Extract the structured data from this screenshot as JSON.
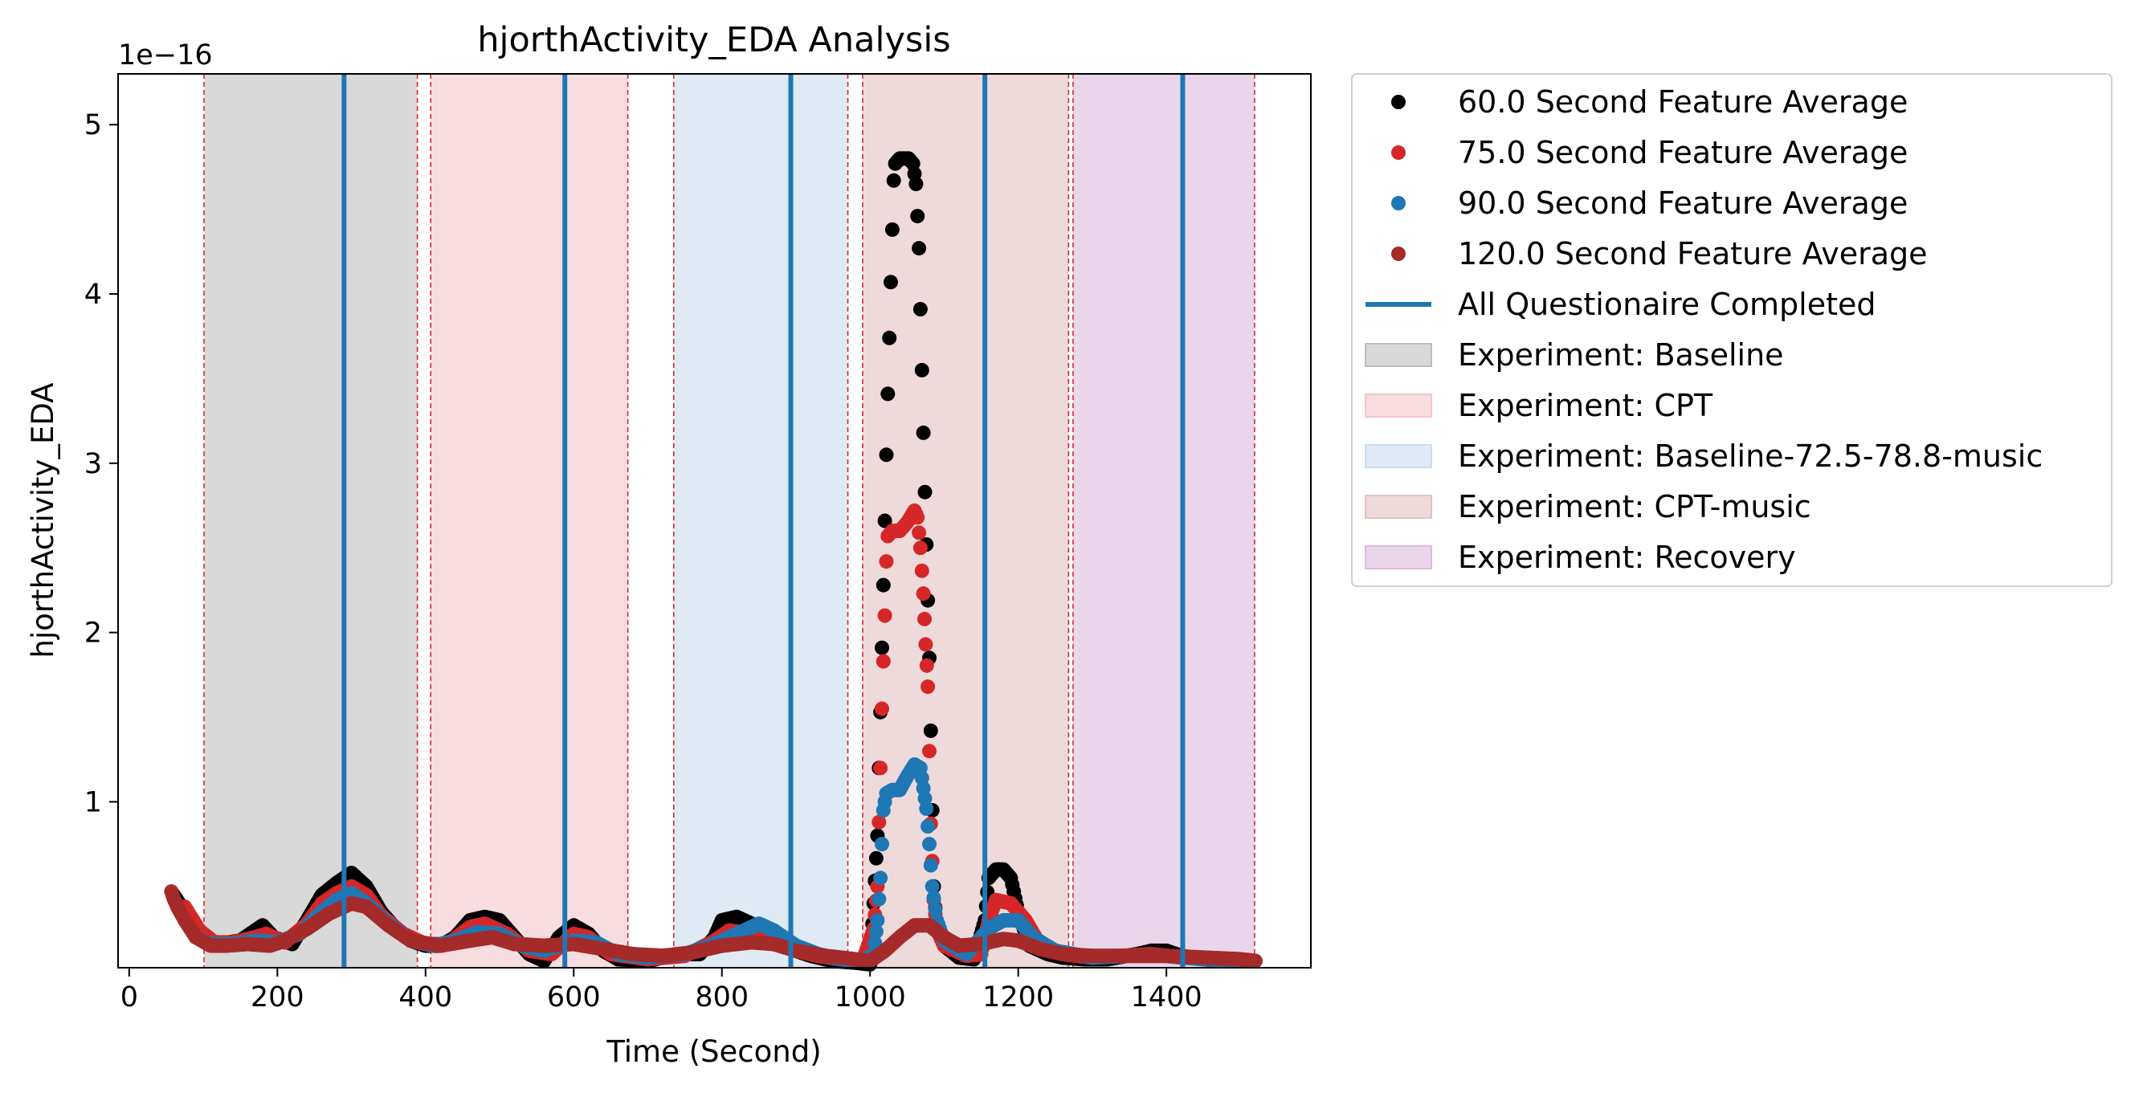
{
  "chart_data": {
    "type": "scatter",
    "title": "hjorthActivity_EDA Analysis",
    "xlabel": "Time (Second)",
    "ylabel": "hjorthActivity_EDA",
    "y_scale_label": "1e−16",
    "xlim": [
      -15,
      1595
    ],
    "ylim": [
      0.02,
      5.3
    ],
    "x_ticks": [
      0,
      200,
      400,
      600,
      800,
      1000,
      1200,
      1400
    ],
    "x_tick_labels": [
      "0",
      "200",
      "400",
      "600",
      "800",
      "1000",
      "1200",
      "1400"
    ],
    "y_ticks": [
      1,
      2,
      3,
      4,
      5
    ],
    "y_tick_labels": [
      "1",
      "2",
      "3",
      "4",
      "5"
    ],
    "grid": false,
    "legend_position": "outside-right",
    "series": [
      {
        "name": "60.0 Second Feature Average",
        "color": "#000000",
        "points": [
          [
            60,
            0.45
          ],
          [
            80,
            0.32
          ],
          [
            100,
            0.18
          ],
          [
            120,
            0.16
          ],
          [
            150,
            0.18
          ],
          [
            170,
            0.24
          ],
          [
            180,
            0.27
          ],
          [
            195,
            0.2
          ],
          [
            220,
            0.16
          ],
          [
            240,
            0.3
          ],
          [
            260,
            0.45
          ],
          [
            280,
            0.52
          ],
          [
            300,
            0.58
          ],
          [
            320,
            0.5
          ],
          [
            340,
            0.35
          ],
          [
            360,
            0.25
          ],
          [
            380,
            0.18
          ],
          [
            400,
            0.15
          ],
          [
            420,
            0.15
          ],
          [
            440,
            0.2
          ],
          [
            460,
            0.3
          ],
          [
            480,
            0.32
          ],
          [
            500,
            0.3
          ],
          [
            520,
            0.2
          ],
          [
            540,
            0.1
          ],
          [
            560,
            0.06
          ],
          [
            580,
            0.2
          ],
          [
            600,
            0.27
          ],
          [
            620,
            0.22
          ],
          [
            640,
            0.12
          ],
          [
            660,
            0.07
          ],
          [
            700,
            0.06
          ],
          [
            740,
            0.1
          ],
          [
            770,
            0.1
          ],
          [
            790,
            0.2
          ],
          [
            800,
            0.3
          ],
          [
            820,
            0.32
          ],
          [
            840,
            0.28
          ],
          [
            860,
            0.2
          ],
          [
            880,
            0.15
          ],
          [
            900,
            0.12
          ],
          [
            920,
            0.09
          ],
          [
            950,
            0.06
          ],
          [
            980,
            0.05
          ],
          [
            1000,
            0.04
          ],
          [
            1005,
            0.4
          ],
          [
            1010,
            0.8
          ],
          [
            1012,
            1.2
          ],
          [
            1014,
            1.53
          ],
          [
            1016,
            1.91
          ],
          [
            1018,
            2.28
          ],
          [
            1020,
            2.66
          ],
          [
            1022,
            3.05
          ],
          [
            1024,
            3.41
          ],
          [
            1026,
            3.74
          ],
          [
            1028,
            4.07
          ],
          [
            1030,
            4.38
          ],
          [
            1032,
            4.67
          ],
          [
            1034,
            4.77
          ],
          [
            1040,
            4.8
          ],
          [
            1046,
            4.8
          ],
          [
            1052,
            4.8
          ],
          [
            1058,
            4.77
          ],
          [
            1062,
            4.65
          ],
          [
            1066,
            4.27
          ],
          [
            1068,
            3.91
          ],
          [
            1070,
            3.55
          ],
          [
            1072,
            3.18
          ],
          [
            1074,
            2.83
          ],
          [
            1076,
            2.52
          ],
          [
            1078,
            2.19
          ],
          [
            1080,
            1.85
          ],
          [
            1082,
            1.42
          ],
          [
            1084,
            0.95
          ],
          [
            1086,
            0.5
          ],
          [
            1090,
            0.25
          ],
          [
            1100,
            0.15
          ],
          [
            1120,
            0.08
          ],
          [
            1140,
            0.07
          ],
          [
            1155,
            0.3
          ],
          [
            1160,
            0.55
          ],
          [
            1170,
            0.6
          ],
          [
            1180,
            0.6
          ],
          [
            1190,
            0.55
          ],
          [
            1200,
            0.35
          ],
          [
            1215,
            0.15
          ],
          [
            1240,
            0.1
          ],
          [
            1260,
            0.08
          ],
          [
            1290,
            0.07
          ],
          [
            1320,
            0.07
          ],
          [
            1360,
            0.1
          ],
          [
            1380,
            0.12
          ],
          [
            1400,
            0.12
          ],
          [
            1420,
            0.09
          ],
          [
            1450,
            0.07
          ],
          [
            1480,
            0.06
          ],
          [
            1500,
            0.06
          ],
          [
            1520,
            0.06
          ]
        ]
      },
      {
        "name": "75.0 Second Feature Average",
        "color": "#d62728",
        "points": [
          [
            75,
            0.38
          ],
          [
            95,
            0.24
          ],
          [
            115,
            0.17
          ],
          [
            140,
            0.17
          ],
          [
            170,
            0.2
          ],
          [
            185,
            0.22
          ],
          [
            210,
            0.17
          ],
          [
            240,
            0.28
          ],
          [
            260,
            0.4
          ],
          [
            280,
            0.46
          ],
          [
            300,
            0.5
          ],
          [
            320,
            0.45
          ],
          [
            340,
            0.33
          ],
          [
            370,
            0.22
          ],
          [
            400,
            0.16
          ],
          [
            430,
            0.16
          ],
          [
            460,
            0.26
          ],
          [
            480,
            0.28
          ],
          [
            510,
            0.22
          ],
          [
            540,
            0.12
          ],
          [
            570,
            0.1
          ],
          [
            600,
            0.22
          ],
          [
            620,
            0.2
          ],
          [
            650,
            0.1
          ],
          [
            700,
            0.07
          ],
          [
            750,
            0.09
          ],
          [
            790,
            0.18
          ],
          [
            810,
            0.24
          ],
          [
            840,
            0.22
          ],
          [
            870,
            0.17
          ],
          [
            900,
            0.12
          ],
          [
            930,
            0.09
          ],
          [
            960,
            0.07
          ],
          [
            990,
            0.06
          ],
          [
            1005,
            0.25
          ],
          [
            1010,
            0.5
          ],
          [
            1012,
            0.88
          ],
          [
            1014,
            1.2
          ],
          [
            1016,
            1.55
          ],
          [
            1018,
            1.83
          ],
          [
            1020,
            2.1
          ],
          [
            1022,
            2.42
          ],
          [
            1024,
            2.57
          ],
          [
            1030,
            2.6
          ],
          [
            1040,
            2.6
          ],
          [
            1050,
            2.65
          ],
          [
            1060,
            2.72
          ],
          [
            1064,
            2.68
          ],
          [
            1068,
            2.5
          ],
          [
            1072,
            2.23
          ],
          [
            1075,
            1.93
          ],
          [
            1078,
            1.68
          ],
          [
            1080,
            1.3
          ],
          [
            1082,
            0.87
          ],
          [
            1084,
            0.65
          ],
          [
            1086,
            0.42
          ],
          [
            1090,
            0.25
          ],
          [
            1100,
            0.15
          ],
          [
            1130,
            0.09
          ],
          [
            1150,
            0.1
          ],
          [
            1160,
            0.3
          ],
          [
            1170,
            0.42
          ],
          [
            1190,
            0.4
          ],
          [
            1210,
            0.3
          ],
          [
            1230,
            0.15
          ],
          [
            1260,
            0.1
          ],
          [
            1300,
            0.08
          ],
          [
            1340,
            0.09
          ],
          [
            1380,
            0.1
          ],
          [
            1420,
            0.08
          ],
          [
            1460,
            0.07
          ],
          [
            1500,
            0.06
          ],
          [
            1520,
            0.06
          ]
        ]
      },
      {
        "name": "90.0 Second Feature Average",
        "color": "#1f77b4",
        "points": [
          [
            90,
            0.2
          ],
          [
            110,
            0.16
          ],
          [
            140,
            0.16
          ],
          [
            170,
            0.18
          ],
          [
            200,
            0.17
          ],
          [
            230,
            0.22
          ],
          [
            260,
            0.35
          ],
          [
            280,
            0.42
          ],
          [
            300,
            0.46
          ],
          [
            320,
            0.4
          ],
          [
            350,
            0.28
          ],
          [
            380,
            0.18
          ],
          [
            410,
            0.15
          ],
          [
            440,
            0.18
          ],
          [
            470,
            0.23
          ],
          [
            500,
            0.22
          ],
          [
            530,
            0.15
          ],
          [
            560,
            0.12
          ],
          [
            600,
            0.18
          ],
          [
            630,
            0.17
          ],
          [
            660,
            0.1
          ],
          [
            700,
            0.08
          ],
          [
            750,
            0.1
          ],
          [
            790,
            0.16
          ],
          [
            820,
            0.22
          ],
          [
            850,
            0.28
          ],
          [
            870,
            0.24
          ],
          [
            900,
            0.15
          ],
          [
            930,
            0.1
          ],
          [
            960,
            0.07
          ],
          [
            990,
            0.06
          ],
          [
            1005,
            0.1
          ],
          [
            1010,
            0.3
          ],
          [
            1014,
            0.55
          ],
          [
            1016,
            0.75
          ],
          [
            1018,
            0.95
          ],
          [
            1022,
            1.05
          ],
          [
            1030,
            1.07
          ],
          [
            1040,
            1.07
          ],
          [
            1050,
            1.15
          ],
          [
            1060,
            1.22
          ],
          [
            1068,
            1.2
          ],
          [
            1072,
            1.08
          ],
          [
            1076,
            0.96
          ],
          [
            1080,
            0.75
          ],
          [
            1084,
            0.5
          ],
          [
            1090,
            0.3
          ],
          [
            1100,
            0.18
          ],
          [
            1130,
            0.1
          ],
          [
            1160,
            0.25
          ],
          [
            1180,
            0.3
          ],
          [
            1200,
            0.3
          ],
          [
            1220,
            0.2
          ],
          [
            1250,
            0.12
          ],
          [
            1300,
            0.08
          ],
          [
            1350,
            0.09
          ],
          [
            1400,
            0.09
          ],
          [
            1450,
            0.07
          ],
          [
            1500,
            0.06
          ],
          [
            1520,
            0.06
          ]
        ]
      },
      {
        "name": "120.0 Second Feature Average",
        "color": "#a52a2a",
        "points": [
          [
            57,
            0.47
          ],
          [
            60,
            0.43
          ],
          [
            65,
            0.38
          ],
          [
            75,
            0.3
          ],
          [
            90,
            0.2
          ],
          [
            110,
            0.15
          ],
          [
            130,
            0.15
          ],
          [
            160,
            0.16
          ],
          [
            190,
            0.15
          ],
          [
            210,
            0.18
          ],
          [
            240,
            0.25
          ],
          [
            270,
            0.34
          ],
          [
            300,
            0.4
          ],
          [
            320,
            0.38
          ],
          [
            350,
            0.27
          ],
          [
            380,
            0.18
          ],
          [
            420,
            0.15
          ],
          [
            460,
            0.18
          ],
          [
            490,
            0.2
          ],
          [
            520,
            0.16
          ],
          [
            560,
            0.15
          ],
          [
            600,
            0.16
          ],
          [
            640,
            0.13
          ],
          [
            680,
            0.1
          ],
          [
            720,
            0.09
          ],
          [
            760,
            0.11
          ],
          [
            800,
            0.15
          ],
          [
            840,
            0.17
          ],
          [
            870,
            0.16
          ],
          [
            900,
            0.12
          ],
          [
            940,
            0.09
          ],
          [
            980,
            0.07
          ],
          [
            1000,
            0.06
          ],
          [
            1020,
            0.12
          ],
          [
            1040,
            0.2
          ],
          [
            1060,
            0.27
          ],
          [
            1080,
            0.27
          ],
          [
            1100,
            0.2
          ],
          [
            1120,
            0.15
          ],
          [
            1150,
            0.16
          ],
          [
            1180,
            0.19
          ],
          [
            1200,
            0.18
          ],
          [
            1230,
            0.13
          ],
          [
            1260,
            0.1
          ],
          [
            1300,
            0.09
          ],
          [
            1350,
            0.09
          ],
          [
            1400,
            0.09
          ],
          [
            1450,
            0.08
          ],
          [
            1500,
            0.07
          ],
          [
            1520,
            0.06
          ]
        ]
      }
    ],
    "vlines": {
      "name": "All Questionaire Completed",
      "color": "#1f77b4",
      "x": [
        290,
        588,
        893,
        1155,
        1422
      ]
    },
    "spans": [
      {
        "name": "Experiment: Baseline",
        "color": "#bfbfbf",
        "x0": 101,
        "x1": 389
      },
      {
        "name": "Experiment: CPT",
        "color": "#f4c6cb",
        "x0": 407,
        "x1": 673
      },
      {
        "name": "Experiment: Baseline-72.5-78.8-music",
        "color": "#c9dcec",
        "x0": 735,
        "x1": 970
      },
      {
        "name": "Experiment: CPT-music",
        "color": "#e3c1c3",
        "x0": 990,
        "x1": 1268
      },
      {
        "name": "Experiment: Recovery",
        "color": "#dcbbdc",
        "x0": 1274,
        "x1": 1519
      }
    ],
    "span_boundaries": [
      101,
      389,
      407,
      673,
      735,
      970,
      990,
      1268,
      1274,
      1519
    ]
  }
}
